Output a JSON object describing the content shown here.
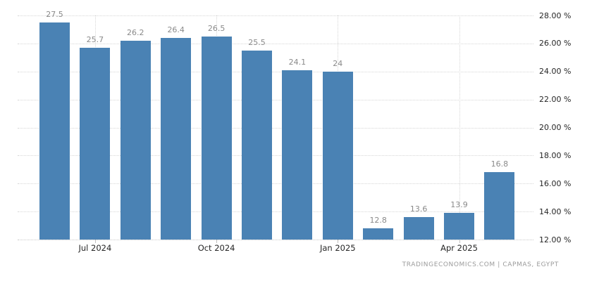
{
  "chart_data": {
    "type": "bar",
    "title": "",
    "values": [
      27.5,
      25.7,
      26.2,
      26.4,
      26.5,
      25.5,
      24.1,
      24,
      12.8,
      13.6,
      13.9,
      16.8
    ],
    "bar_labels": [
      "27.5",
      "25.7",
      "26.2",
      "26.4",
      "26.5",
      "25.5",
      "24.1",
      "24",
      "12.8",
      "13.6",
      "13.9",
      "16.8"
    ],
    "x_ticks": [
      {
        "label": "Jul 2024",
        "bar_index": 1
      },
      {
        "label": "Oct 2024",
        "bar_index": 4
      },
      {
        "label": "Jan 2025",
        "bar_index": 7
      },
      {
        "label": "Apr 2025",
        "bar_index": 10
      }
    ],
    "y_ticks": [
      {
        "label": "28.00 %",
        "value": 28
      },
      {
        "label": "26.00 %",
        "value": 26
      },
      {
        "label": "24.00 %",
        "value": 24
      },
      {
        "label": "22.00 %",
        "value": 22
      },
      {
        "label": "20.00 %",
        "value": 20
      },
      {
        "label": "18.00 %",
        "value": 18
      },
      {
        "label": "16.00 %",
        "value": 16
      },
      {
        "label": "14.00 %",
        "value": 14
      },
      {
        "label": "12.00 %",
        "value": 12
      }
    ],
    "ylim": [
      12,
      28
    ],
    "grid": true,
    "legend": "none",
    "bar_color": "#4a82b4"
  },
  "attribution": {
    "text": "TRADINGECONOMICS.COM  |  CAPMAS, EGYPT"
  }
}
